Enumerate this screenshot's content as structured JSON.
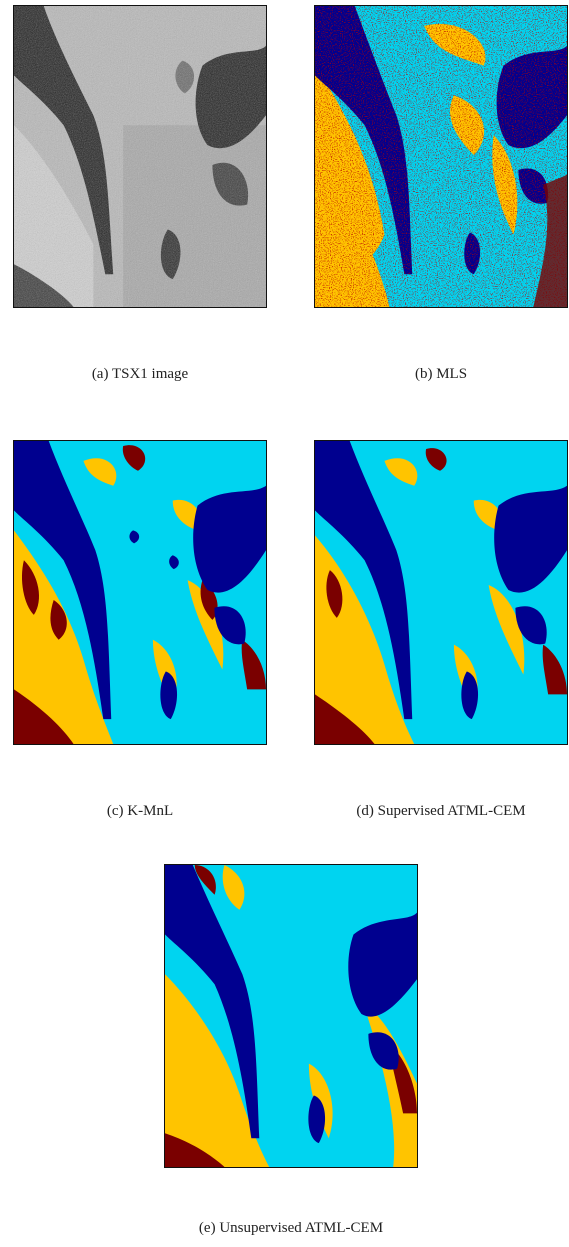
{
  "figure": {
    "panels": [
      {
        "id": "a",
        "caption": "(a)  TSX1 image",
        "kind": "sar-intensity"
      },
      {
        "id": "b",
        "caption": "(b)  MLS",
        "kind": "noisy-segmentation"
      },
      {
        "id": "c",
        "caption": "(c)  K-MnL",
        "kind": "segmentation"
      },
      {
        "id": "d",
        "caption": "(d)  Supervised ATML-CEM",
        "kind": "segmentation"
      },
      {
        "id": "e",
        "caption": "(e)  Unsupervised ATML-CEM",
        "kind": "segmentation"
      }
    ],
    "class_colors": {
      "water": "#00008f",
      "class_2": "#00d4f0",
      "class_3": "#ffc400",
      "class_4": "#7a0000"
    },
    "sar_colors": {
      "dark": "#1a1a1a",
      "mid": "#9a9a9a",
      "light": "#c8c8c8"
    }
  }
}
